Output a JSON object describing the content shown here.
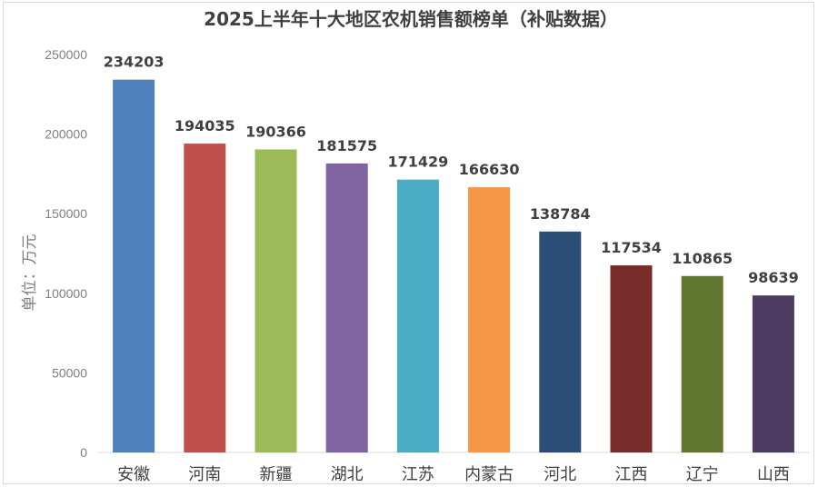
{
  "chart_data": {
    "type": "bar",
    "title": "2025上半年十大地区农机销售额榜单（补贴数据）",
    "ylabel": "单位：万元",
    "xlabel": "",
    "categories": [
      "安徽",
      "河南",
      "新疆",
      "湖北",
      "江苏",
      "内蒙古",
      "河北",
      "江西",
      "辽宁",
      "山西"
    ],
    "values": [
      234203,
      194035,
      190366,
      181575,
      171429,
      166630,
      138784,
      117534,
      110865,
      98639
    ],
    "colors": [
      "#4f81bd",
      "#c0504d",
      "#9bbb59",
      "#8064a2",
      "#4bacc6",
      "#f79646",
      "#2c4d75",
      "#772c2a",
      "#5f7530",
      "#4d3b62"
    ],
    "ylim": [
      0,
      250000
    ],
    "yticks": [
      "0",
      "50000",
      "100000",
      "150000",
      "200000",
      "250000"
    ],
    "grid": false,
    "legend": "none"
  }
}
